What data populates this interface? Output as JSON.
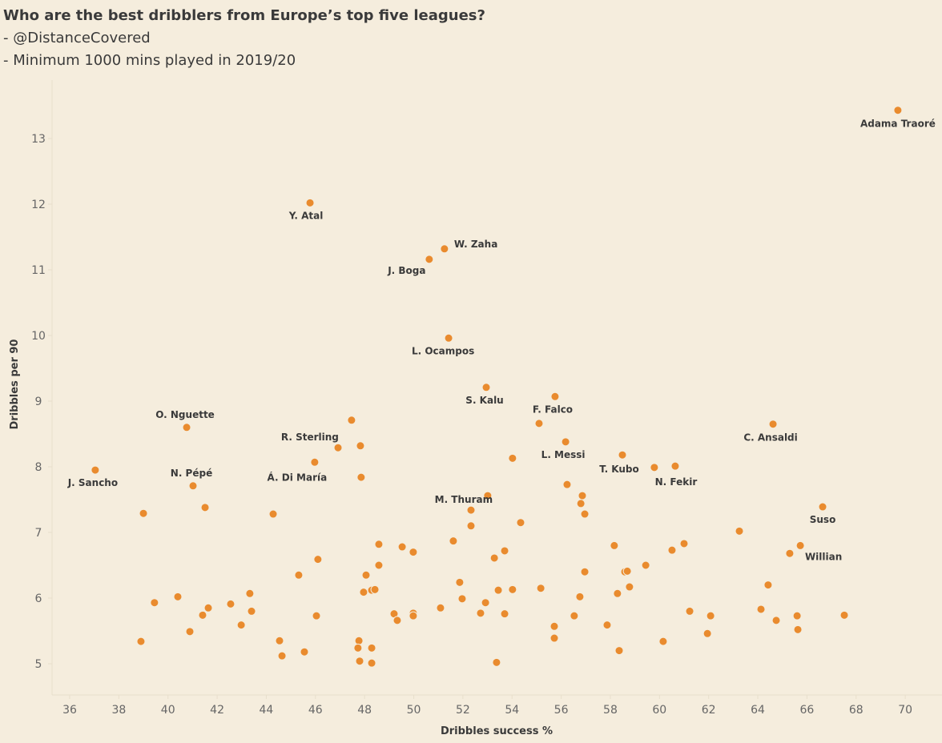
{
  "header": {
    "title": "Who are the best dribblers from Europe’s top five leagues?",
    "subtitle_1": "- @DistanceCovered",
    "subtitle_2": "- Minimum 1000 mins played in 2019/20"
  },
  "chart_data": {
    "type": "scatter",
    "xlabel": "Dribbles success %",
    "ylabel": "Dribbles per 90",
    "xlim": [
      35.3,
      71.2
    ],
    "ylim": [
      4.5,
      13.9
    ],
    "xticks": [
      36,
      38,
      40,
      42,
      44,
      46,
      48,
      50,
      52,
      54,
      56,
      58,
      60,
      62,
      64,
      66,
      68,
      70
    ],
    "yticks": [
      5,
      6,
      7,
      8,
      9,
      10,
      11,
      12,
      13
    ],
    "grid": false,
    "point_color": "#e98b2e",
    "labeled_points": [
      {
        "name": "Adama Traoré",
        "x": 69.7,
        "y": 13.43
      },
      {
        "name": "Y. Atal",
        "x": 45.78,
        "y": 12.02
      },
      {
        "name": "W. Zaha",
        "x": 51.25,
        "y": 11.32
      },
      {
        "name": "J. Boga",
        "x": 50.63,
        "y": 11.16
      },
      {
        "name": "L. Ocampos",
        "x": 51.42,
        "y": 9.96
      },
      {
        "name": "S. Kalu",
        "x": 52.95,
        "y": 9.21
      },
      {
        "name": "F. Falco",
        "x": 55.75,
        "y": 9.07
      },
      {
        "name": "C. Ansaldi",
        "x": 64.62,
        "y": 8.65
      },
      {
        "name": "O. Nguette",
        "x": 40.76,
        "y": 8.6
      },
      {
        "name": "R. Sterling",
        "x": 47.47,
        "y": 8.71
      },
      {
        "name": "L. Messi",
        "x": 56.18,
        "y": 8.38
      },
      {
        "name": "T. Kubo",
        "x": 58.49,
        "y": 8.18
      },
      {
        "name": "N. Fekir",
        "x": 60.64,
        "y": 8.01
      },
      {
        "name": "J. Sancho",
        "x": 37.04,
        "y": 7.95
      },
      {
        "name": "Á. Di María",
        "x": 45.97,
        "y": 8.07
      },
      {
        "name": "N. Pépé",
        "x": 41.02,
        "y": 7.71
      },
      {
        "name": "M. Thuram",
        "x": 53.01,
        "y": 7.56
      },
      {
        "name": "Suso",
        "x": 66.64,
        "y": 7.39
      },
      {
        "name": "Willian",
        "x": 65.73,
        "y": 6.8
      }
    ],
    "points": [
      [
        38.9,
        5.34
      ],
      [
        39.45,
        5.93
      ],
      [
        40.4,
        6.02
      ],
      [
        40.89,
        5.49
      ],
      [
        41.41,
        5.74
      ],
      [
        41.64,
        5.85
      ],
      [
        42.55,
        5.91
      ],
      [
        42.98,
        5.59
      ],
      [
        43.33,
        6.07
      ],
      [
        43.4,
        5.8
      ],
      [
        44.54,
        5.35
      ],
      [
        44.64,
        5.12
      ],
      [
        45.55,
        5.18
      ],
      [
        45.32,
        6.35
      ],
      [
        46.1,
        6.59
      ],
      [
        46.04,
        5.73
      ],
      [
        48.06,
        6.35
      ],
      [
        47.96,
        6.09
      ],
      [
        48.29,
        6.12
      ],
      [
        48.42,
        6.13
      ],
      [
        48.58,
        6.5
      ],
      [
        48.58,
        6.82
      ],
      [
        49.53,
        6.78
      ],
      [
        49.98,
        6.7
      ],
      [
        47.77,
        5.35
      ],
      [
        47.73,
        5.24
      ],
      [
        48.29,
        5.24
      ],
      [
        47.8,
        5.04
      ],
      [
        48.29,
        5.01
      ],
      [
        49.2,
        5.76
      ],
      [
        49.33,
        5.66
      ],
      [
        49.98,
        5.77
      ],
      [
        49.98,
        5.73
      ],
      [
        51.09,
        5.85
      ],
      [
        51.61,
        6.87
      ],
      [
        51.87,
        6.24
      ],
      [
        51.97,
        5.99
      ],
      [
        52.33,
        7.1
      ],
      [
        52.33,
        7.34
      ],
      [
        52.72,
        5.77
      ],
      [
        52.92,
        5.93
      ],
      [
        39.0,
        7.29
      ],
      [
        41.51,
        7.38
      ],
      [
        44.28,
        7.28
      ],
      [
        53.37,
        5.02
      ],
      [
        53.44,
        6.12
      ],
      [
        53.7,
        6.72
      ],
      [
        53.28,
        6.61
      ],
      [
        53.7,
        5.76
      ],
      [
        54.02,
        6.13
      ],
      [
        54.35,
        7.15
      ],
      [
        55.17,
        6.15
      ],
      [
        55.72,
        5.57
      ],
      [
        55.72,
        5.39
      ],
      [
        56.53,
        5.73
      ],
      [
        56.76,
        6.02
      ],
      [
        56.96,
        6.4
      ],
      [
        58.29,
        6.07
      ],
      [
        57.87,
        5.59
      ],
      [
        58.16,
        6.8
      ],
      [
        58.59,
        6.4
      ],
      [
        58.69,
        6.41
      ],
      [
        58.78,
        6.17
      ],
      [
        59.44,
        6.5
      ],
      [
        58.36,
        5.2
      ],
      [
        60.15,
        5.34
      ],
      [
        60.51,
        6.73
      ],
      [
        61.0,
        6.83
      ],
      [
        61.23,
        5.8
      ],
      [
        62.08,
        5.73
      ],
      [
        61.95,
        5.46
      ],
      [
        63.25,
        7.02
      ],
      [
        64.13,
        5.83
      ],
      [
        64.42,
        6.2
      ],
      [
        64.75,
        5.66
      ],
      [
        65.3,
        6.68
      ],
      [
        65.6,
        5.73
      ],
      [
        65.63,
        5.52
      ],
      [
        67.52,
        5.74
      ],
      [
        47.83,
        8.32
      ],
      [
        46.92,
        8.29
      ],
      [
        47.86,
        7.84
      ],
      [
        54.02,
        8.13
      ],
      [
        55.1,
        8.66
      ],
      [
        56.24,
        7.73
      ],
      [
        56.86,
        7.56
      ],
      [
        56.8,
        7.44
      ],
      [
        56.96,
        7.28
      ],
      [
        59.79,
        7.99
      ]
    ]
  }
}
